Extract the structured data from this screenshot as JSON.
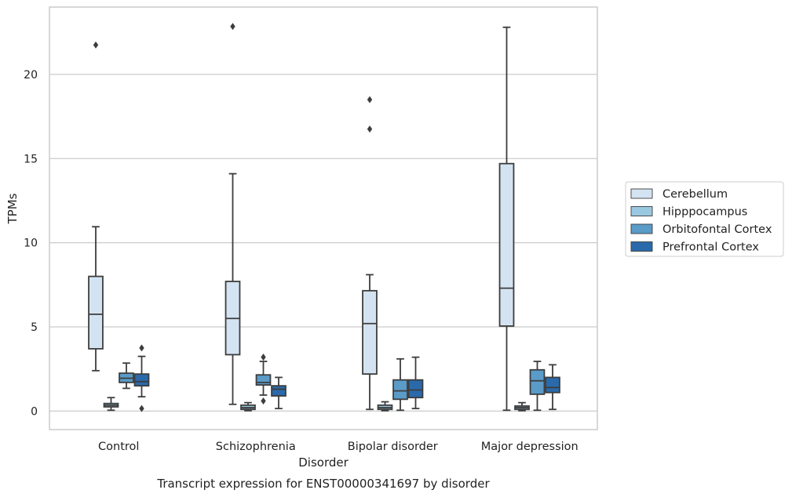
{
  "chart_data": {
    "type": "boxplot",
    "caption": "Transcript expression for ENST00000341697 by disorder",
    "xlabel": "Disorder",
    "ylabel": "TPMs",
    "ylim": [
      -1.1,
      24.0
    ],
    "yticks": [
      0,
      5,
      10,
      15,
      20
    ],
    "grid": true,
    "legend_position": "right",
    "categories": [
      "Control",
      "Schizophrenia",
      "Bipolar disorder",
      "Major depression"
    ],
    "series": [
      {
        "name": "Cerebellum",
        "color": "#d4e3f1",
        "boxes": [
          {
            "whisker_low": 2.4,
            "q1": 3.7,
            "median": 5.75,
            "q3": 8.0,
            "whisker_high": 10.95,
            "outliers": [
              21.75
            ]
          },
          {
            "whisker_low": 0.4,
            "q1": 3.35,
            "median": 5.5,
            "q3": 7.7,
            "whisker_high": 14.1,
            "outliers": [
              22.85
            ]
          },
          {
            "whisker_low": 0.1,
            "q1": 2.2,
            "median": 5.2,
            "q3": 7.15,
            "whisker_high": 8.1,
            "outliers": [
              16.75,
              18.5
            ]
          },
          {
            "whisker_low": 0.05,
            "q1": 5.05,
            "median": 7.3,
            "q3": 14.7,
            "whisker_high": 22.8,
            "outliers": []
          }
        ]
      },
      {
        "name": "Hipppocampus",
        "color": "#9ac8e0",
        "boxes": [
          {
            "whisker_low": 0.05,
            "q1": 0.25,
            "median": 0.35,
            "q3": 0.45,
            "whisker_high": 0.8,
            "outliers": []
          },
          {
            "whisker_low": 0.02,
            "q1": 0.1,
            "median": 0.2,
            "q3": 0.35,
            "whisker_high": 0.5,
            "outliers": []
          },
          {
            "whisker_low": 0.02,
            "q1": 0.1,
            "median": 0.2,
            "q3": 0.35,
            "whisker_high": 0.55,
            "outliers": []
          },
          {
            "whisker_low": 0.02,
            "q1": 0.1,
            "median": 0.2,
            "q3": 0.3,
            "whisker_high": 0.5,
            "outliers": []
          }
        ]
      },
      {
        "name": "Orbitofontal Cortex",
        "color": "#5a9bc8",
        "boxes": [
          {
            "whisker_low": 1.35,
            "q1": 1.7,
            "median": 1.95,
            "q3": 2.25,
            "whisker_high": 2.85,
            "outliers": []
          },
          {
            "whisker_low": 0.95,
            "q1": 1.55,
            "median": 1.7,
            "q3": 2.15,
            "whisker_high": 2.95,
            "outliers": [
              0.6,
              3.2
            ]
          },
          {
            "whisker_low": 0.05,
            "q1": 0.7,
            "median": 1.2,
            "q3": 1.85,
            "whisker_high": 3.1,
            "outliers": []
          },
          {
            "whisker_low": 0.05,
            "q1": 1.0,
            "median": 1.8,
            "q3": 2.45,
            "whisker_high": 2.95,
            "outliers": []
          }
        ]
      },
      {
        "name": "Prefrontal Cortex",
        "color": "#2a6aab",
        "boxes": [
          {
            "whisker_low": 0.85,
            "q1": 1.5,
            "median": 1.75,
            "q3": 2.2,
            "whisker_high": 3.25,
            "outliers": [
              0.15,
              3.75
            ]
          },
          {
            "whisker_low": 0.15,
            "q1": 0.9,
            "median": 1.3,
            "q3": 1.5,
            "whisker_high": 2.0,
            "outliers": []
          },
          {
            "whisker_low": 0.15,
            "q1": 0.8,
            "median": 1.25,
            "q3": 1.85,
            "whisker_high": 3.2,
            "outliers": []
          },
          {
            "whisker_low": 0.1,
            "q1": 1.1,
            "median": 1.4,
            "q3": 2.0,
            "whisker_high": 2.75,
            "outliers": []
          }
        ]
      }
    ]
  }
}
